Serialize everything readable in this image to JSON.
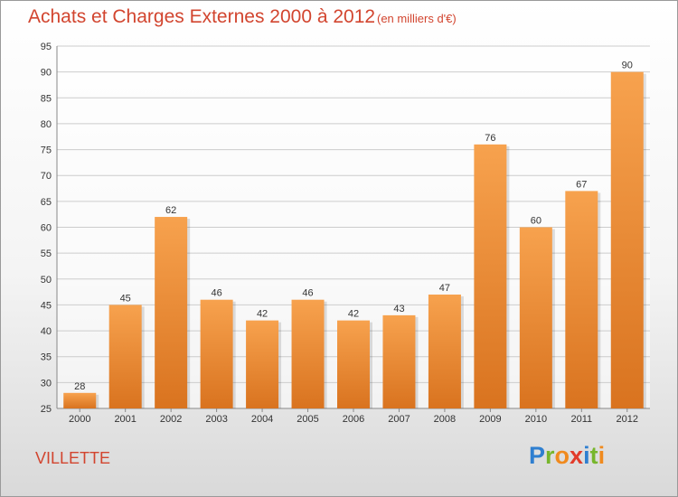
{
  "header": {
    "title": "Achats et Charges Externes 2000 à 2012",
    "subtitle": "(en milliers d'€)"
  },
  "footer": {
    "city": "VILLETTE",
    "logo": "Proxiti"
  },
  "colors": {
    "bar_top": "#f7a24e",
    "bar_bottom": "#d9731f",
    "title": "#d2452f",
    "grid": "#cccccc"
  },
  "chart_data": {
    "type": "bar",
    "title": "Achats et Charges Externes 2000 à 2012",
    "subtitle": "(en milliers d'€)",
    "categories": [
      "2000",
      "2001",
      "2002",
      "2003",
      "2004",
      "2005",
      "2006",
      "2007",
      "2008",
      "2009",
      "2010",
      "2011",
      "2012"
    ],
    "values": [
      28,
      45,
      62,
      46,
      42,
      46,
      42,
      43,
      47,
      76,
      60,
      67,
      90
    ],
    "ylim": [
      25,
      95
    ],
    "yticks": [
      25,
      30,
      35,
      40,
      45,
      50,
      55,
      60,
      65,
      70,
      75,
      80,
      85,
      90,
      95
    ],
    "grid": true,
    "xlabel": "",
    "ylabel": ""
  }
}
